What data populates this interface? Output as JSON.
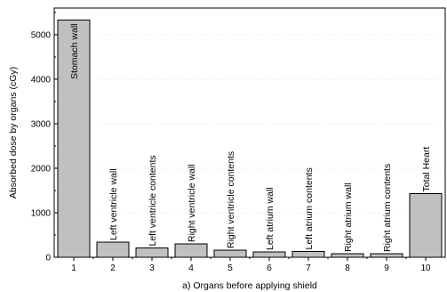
{
  "chart_data": {
    "type": "bar",
    "title": "",
    "xlabel": "a) Organs before applying shield",
    "ylabel": "Absorbed dose by organs (cGy)",
    "ylim": [
      0,
      5600
    ],
    "yticks": [
      0,
      1000,
      2000,
      3000,
      4000,
      5000
    ],
    "xlim": [
      0.5,
      10.5
    ],
    "grid": true,
    "legend": "none",
    "bar_color": "#c0c0c0",
    "categories": [
      "1",
      "2",
      "3",
      "4",
      "5",
      "6",
      "7",
      "8",
      "9",
      "10"
    ],
    "values": [
      5330,
      340,
      210,
      300,
      160,
      120,
      130,
      80,
      80,
      1430
    ],
    "bar_labels": [
      "Stomach wall",
      "Left ventricle wall",
      "Left ventricle contents",
      "Right ventricle wall",
      "Right ventricle contents",
      "Left atrium wall",
      "Left atrium contents",
      "Right atrium wall",
      "Right atrium contents",
      "Total Heart"
    ]
  }
}
